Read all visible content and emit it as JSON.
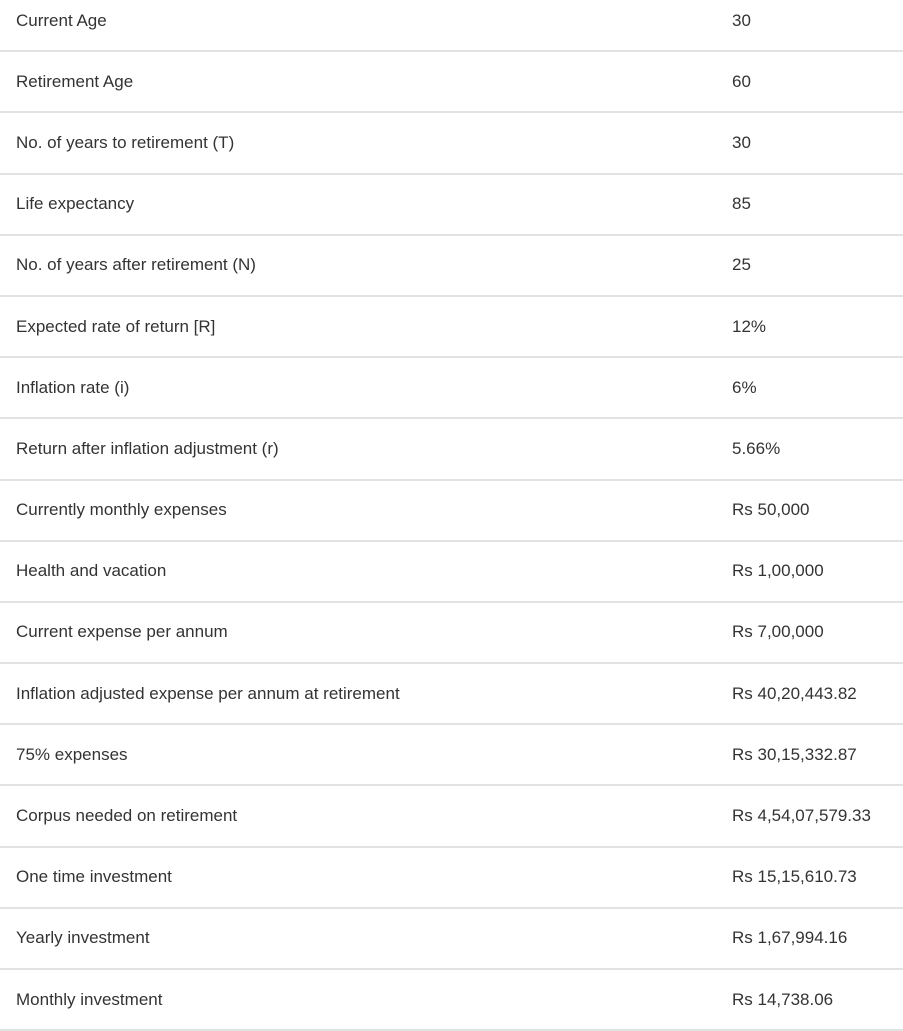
{
  "rows": [
    {
      "label": "Current Age",
      "value": "30"
    },
    {
      "label": "Retirement Age",
      "value": "60"
    },
    {
      "label": "No. of years to retirement (T)",
      "value": "30"
    },
    {
      "label": "Life expectancy",
      "value": "85"
    },
    {
      "label": "No. of years after retirement (N)",
      "value": "25"
    },
    {
      "label": "Expected rate of return [R]",
      "value": "12%"
    },
    {
      "label": "Inflation rate (i)",
      "value": "6%"
    },
    {
      "label": "Return after inflation adjustment (r)",
      "value": "5.66%"
    },
    {
      "label": "Currently monthly expenses",
      "value": "Rs 50,000"
    },
    {
      "label": "Health and vacation",
      "value": "Rs 1,00,000"
    },
    {
      "label": "Current expense per annum",
      "value": "Rs 7,00,000"
    },
    {
      "label": "Inflation adjusted expense per annum at retirement",
      "value": "Rs 40,20,443.82"
    },
    {
      "label": "75% expenses",
      "value": "Rs 30,15,332.87"
    },
    {
      "label": "Corpus needed on retirement",
      "value": "Rs 4,54,07,579.33"
    },
    {
      "label": "One time investment",
      "value": "Rs 15,15,610.73"
    },
    {
      "label": "Yearly investment",
      "value": "Rs 1,67,994.16"
    },
    {
      "label": "Monthly investment",
      "value": "Rs 14,738.06"
    }
  ]
}
